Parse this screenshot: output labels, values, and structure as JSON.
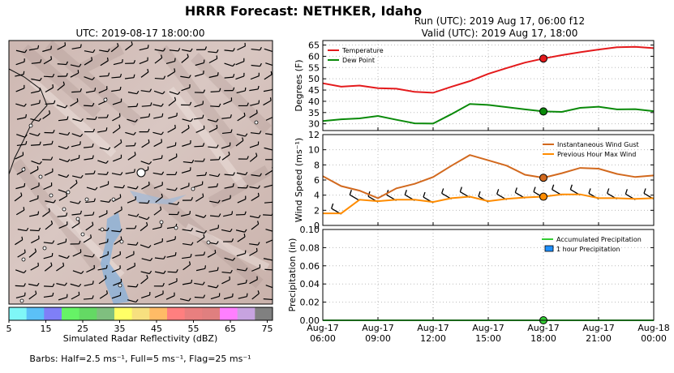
{
  "suptitle": "HRRR Forecast: NETHKER, Idaho",
  "map": {
    "title": "UTC: 2019-08-17 18:00:00"
  },
  "colorbar": {
    "label": "Simulated Radar Reflectivity (dBZ)",
    "ticks": [
      "5",
      "15",
      "25",
      "35",
      "45",
      "55",
      "65",
      "75"
    ],
    "colors": [
      "#7ff7f7",
      "#5bc0f7",
      "#7f7ff7",
      "#66f366",
      "#64d964",
      "#7fbf7f",
      "#ffff66",
      "#f7e07f",
      "#ffbb66",
      "#ff7f7f",
      "#e87f7f",
      "#e07f7f",
      "#ff7fff",
      "#c7a3e0",
      "#808080"
    ]
  },
  "barbs_note": "Barbs: Half=2.5 ms⁻¹, Full=5 ms⁻¹, Flag=25 ms⁻¹",
  "run_title": "Run (UTC): 2019 Aug 17, 06:00 f12",
  "valid_title": "Valid (UTC): 2019 Aug 17, 18:00",
  "x_ticks": [
    {
      "l1": "Aug-17",
      "l2": "06:00"
    },
    {
      "l1": "Aug-17",
      "l2": "09:00"
    },
    {
      "l1": "Aug-17",
      "l2": "12:00"
    },
    {
      "l1": "Aug-17",
      "l2": "15:00"
    },
    {
      "l1": "Aug-17",
      "l2": "18:00"
    },
    {
      "l1": "Aug-17",
      "l2": "21:00"
    },
    {
      "l1": "Aug-18",
      "l2": "00:00"
    }
  ],
  "chart_data": [
    {
      "type": "line",
      "ylabel": "Degrees (F)",
      "ylim": [
        27,
        67
      ],
      "yticks": [
        30,
        35,
        40,
        45,
        50,
        55,
        60,
        65
      ],
      "x_hours": [
        0,
        1,
        2,
        3,
        4,
        5,
        6,
        7,
        8,
        9,
        10,
        11,
        12,
        13,
        14,
        15,
        16,
        17,
        18
      ],
      "grid": true,
      "legend_position": "top-left",
      "marker_hour": 12,
      "series": [
        {
          "name": "Temperature",
          "color": "#e41a1c",
          "values": [
            48,
            46.5,
            47,
            45.8,
            45.6,
            44.2,
            43.8,
            46.5,
            49,
            52.2,
            54.8,
            57.2,
            59,
            60.5,
            61.8,
            63,
            64,
            64.2,
            63.6
          ]
        },
        {
          "name": "Dew Point",
          "color": "#0a8a0a",
          "values": [
            31.2,
            32,
            32.4,
            33.5,
            31.8,
            30.2,
            30.1,
            34.3,
            38.8,
            38.4,
            37.4,
            36.4,
            35.5,
            35.3,
            37.1,
            37.6,
            36.4,
            36.5,
            35.6
          ]
        }
      ]
    },
    {
      "type": "line",
      "ylabel": "Wind Speed (ms⁻¹)",
      "ylim": [
        0,
        12
      ],
      "yticks": [
        0,
        2,
        4,
        6,
        8,
        10,
        12
      ],
      "x_hours": [
        0,
        1,
        2,
        3,
        4,
        5,
        6,
        7,
        8,
        9,
        10,
        11,
        12,
        13,
        14,
        15,
        16,
        17,
        18
      ],
      "grid": true,
      "legend_position": "top-right",
      "marker_hour": 12,
      "series": [
        {
          "name": "Instantaneous Wind Gust",
          "color": "#d2691e",
          "values": [
            6.5,
            5.2,
            4.6,
            3.6,
            4.9,
            5.5,
            6.4,
            7.9,
            9.3,
            8.6,
            7.9,
            6.7,
            6.3,
            6.9,
            7.6,
            7.5,
            6.8,
            6.4,
            6.6
          ]
        },
        {
          "name": "Previous Hour Max Wind",
          "color": "#ff8c00",
          "values": [
            1.6,
            1.6,
            3.4,
            3.2,
            3.4,
            3.4,
            3.1,
            3.6,
            3.8,
            3.2,
            3.5,
            3.7,
            3.8,
            4.1,
            4.1,
            3.6,
            3.6,
            3.5,
            3.6
          ]
        }
      ]
    },
    {
      "type": "line",
      "ylabel": "Precipitation (in)",
      "ylim": [
        0,
        0.1
      ],
      "yticks": [
        "0.00",
        "0.02",
        "0.04",
        "0.06",
        "0.08",
        "0.10"
      ],
      "x_hours": [
        0,
        1,
        2,
        3,
        4,
        5,
        6,
        7,
        8,
        9,
        10,
        11,
        12,
        13,
        14,
        15,
        16,
        17,
        18
      ],
      "grid": true,
      "legend_position": "top-right",
      "marker_hour": 12,
      "series": [
        {
          "name": "Accumulated Precipitation",
          "color": "#33cc33",
          "values": [
            0,
            0,
            0,
            0,
            0,
            0,
            0,
            0,
            0,
            0,
            0,
            0,
            0,
            0,
            0,
            0,
            0,
            0,
            0
          ]
        },
        {
          "name": "1 hour Precipitation",
          "color": "#1e90ff",
          "values": [
            0,
            0,
            0,
            0,
            0,
            0,
            0,
            0,
            0,
            0,
            0,
            0,
            0,
            0,
            0,
            0,
            0,
            0,
            0
          ]
        }
      ]
    }
  ]
}
